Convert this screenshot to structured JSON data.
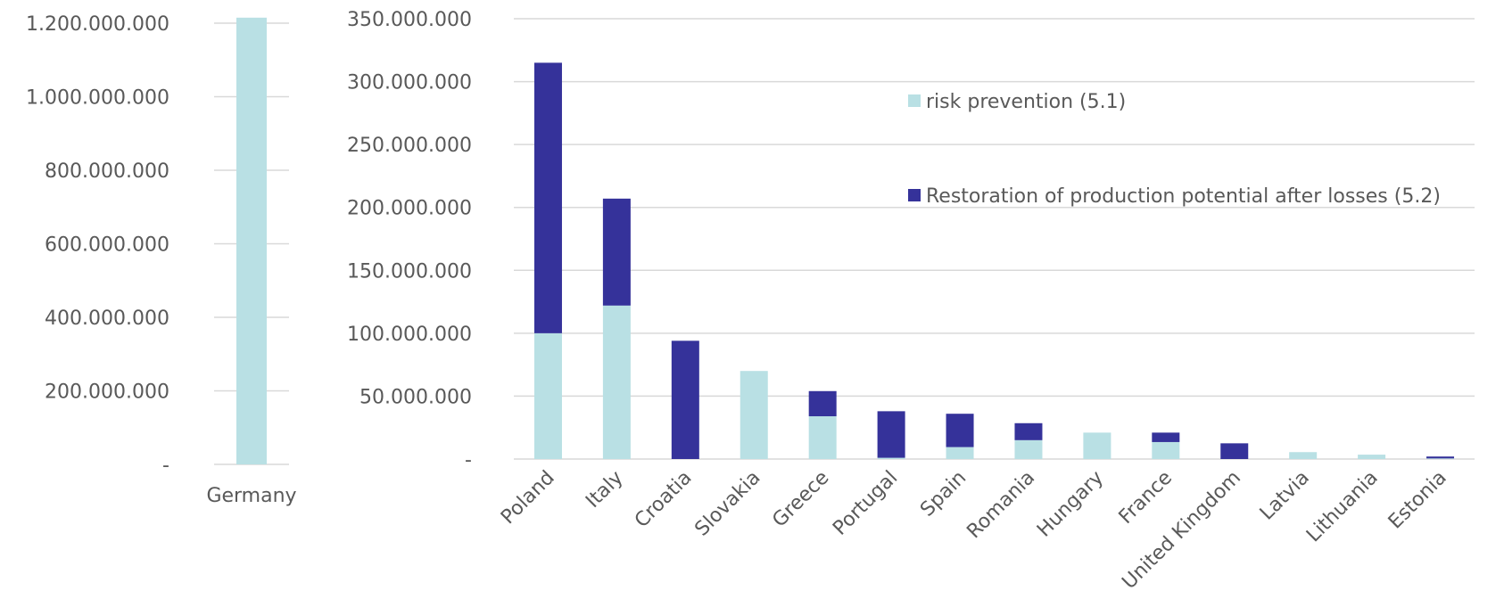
{
  "chart_data": [
    {
      "type": "bar",
      "categories": [
        "Germany"
      ],
      "series": [
        {
          "name": "risk prevention (5.1)",
          "values": [
            1215000000
          ],
          "color": "#b9e0e4"
        }
      ],
      "yticks": [
        "-",
        "200.000.000",
        "400.000.000",
        "600.000.000",
        "800.000.000",
        "1.000.000.000",
        "1.200.000.000"
      ],
      "ylim": [
        0,
        1200000000
      ],
      "grid": true
    },
    {
      "type": "bar",
      "stacked": true,
      "categories": [
        "Poland",
        "Italy",
        "Croatia",
        "Slovakia",
        "Greece",
        "Portugal",
        "Spain",
        "Romania",
        "Hungary",
        "France",
        "United Kingdom",
        "Latvia",
        "Lithuania",
        "Estonia"
      ],
      "series": [
        {
          "name": "risk prevention (5.1)",
          "color": "#b9e0e4",
          "values": [
            100000000,
            122000000,
            0,
            70000000,
            34000000,
            1000000,
            9500000,
            15000000,
            21000000,
            13500000,
            0,
            5500000,
            3500000,
            500000
          ]
        },
        {
          "name": "Restoration of production potential after losses (5.2)",
          "color": "#35329a",
          "values": [
            215000000,
            85000000,
            94000000,
            0,
            20000000,
            37000000,
            26500000,
            13500000,
            0,
            7500000,
            12500000,
            0,
            0,
            1500000
          ]
        }
      ],
      "yticks": [
        "-",
        "50.000.000",
        "100.000.000",
        "150.000.000",
        "200.000.000",
        "250.000.000",
        "300.000.000",
        "350.000.000"
      ],
      "ylim": [
        0,
        350000000
      ],
      "grid": true,
      "legend_position": "top-right inside plot"
    }
  ]
}
